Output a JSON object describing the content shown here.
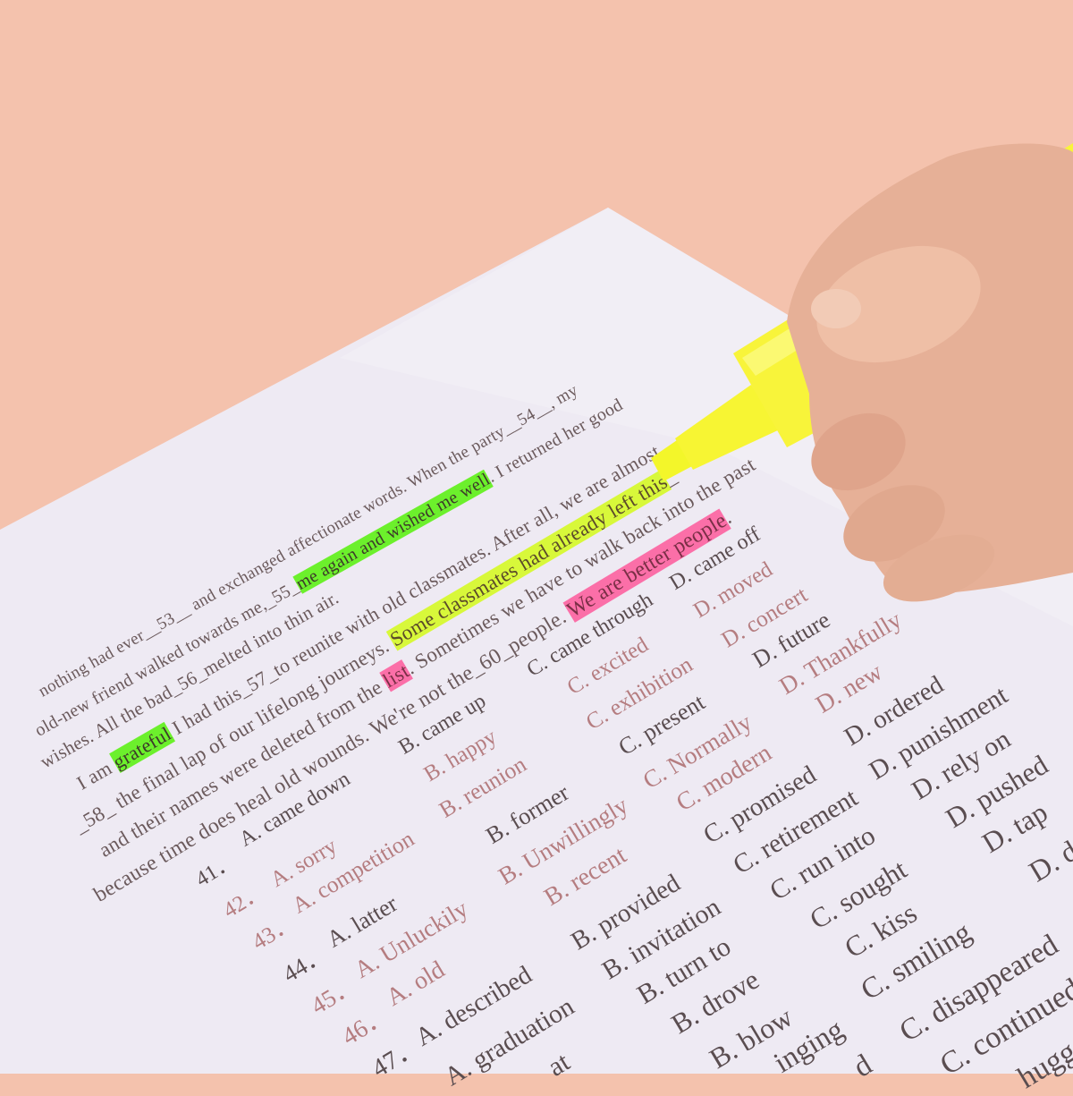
{
  "colors": {
    "background": "#f4c2ad",
    "paper": "#eeeaf3",
    "highlight_green": "#6cf02c",
    "highlight_yellow": "#d8f83a",
    "highlight_pink": "#fb6fa8",
    "highlighter_body": "#f7f533",
    "skin": "#e6b097"
  },
  "passage": [
    {
      "segments": [
        {
          "text": "nothing had ever__53__ and exchanged affectionate words. When the party__54__,      my",
          "hl": ""
        }
      ]
    },
    {
      "segments": [
        {
          "text": "old-new friend walked towards me,_55_",
          "hl": ""
        },
        {
          "text": "me again and wished me well",
          "hl": "green"
        },
        {
          "text": ". I returned her good",
          "hl": ""
        }
      ]
    },
    {
      "segments": [
        {
          "text": "wishes. All the bad_56_melted into thin air.",
          "hl": ""
        }
      ]
    },
    {
      "segments": [
        {
          "text": "I am ",
          "hl": ""
        },
        {
          "text": "grateful",
          "hl": "green"
        },
        {
          "text": " I had this_57_to reunite with old classmates. After all, we are almost",
          "hl": ""
        }
      ]
    },
    {
      "segments": [
        {
          "text": "_58_ the final lap of our lifelong journeys. ",
          "hl": ""
        },
        {
          "text": "Some classmates had already left this",
          "hl": "yellow"
        },
        {
          "text": "_",
          "hl": ""
        }
      ]
    },
    {
      "segments": [
        {
          "text": "and their names were deleted from the ",
          "hl": ""
        },
        {
          "text": "list",
          "hl": "pink"
        },
        {
          "text": ". Sometimes we have to walk back into the past",
          "hl": ""
        }
      ]
    },
    {
      "segments": [
        {
          "text": "because time does heal old wounds. We're not the_60_people. ",
          "hl": ""
        },
        {
          "text": "We are better people",
          "hl": "pink"
        },
        {
          "text": ".",
          "hl": ""
        }
      ]
    }
  ],
  "options": [
    {
      "num": "41．",
      "A": "A. came down",
      "B": "B. came up",
      "C": "C. came through",
      "D": "D. came off"
    },
    {
      "num": "42．",
      "A": "A. sorry",
      "B": "B. happy",
      "C": "C. excited",
      "D": "D. moved"
    },
    {
      "num": "43．",
      "A": "A. competition",
      "B": "B. reunion",
      "C": "C. exhibition",
      "D": "D. concert"
    },
    {
      "num": "44．",
      "A": "A. latter",
      "B": "B. former",
      "C": "C. present",
      "D": "D. future"
    },
    {
      "num": "45．",
      "A": "A. Unluckily",
      "B": "B. Unwillingly",
      "C": "C. Normally",
      "D": "D. Thankfully"
    },
    {
      "num": "46．",
      "A": "A. old",
      "B": "B. recent",
      "C": "C. modern",
      "D": "D. new"
    },
    {
      "num": "47．",
      "A": "A. described",
      "B": "B. provided",
      "C": "C. promised",
      "D": "D. ordered"
    },
    {
      "num": "",
      "A": "A. graduation",
      "B": "B. invitation",
      "C": "C. retirement",
      "D": "D. punishment"
    },
    {
      "num": "",
      "A": "at",
      "B": "B. turn to",
      "C": "C. run into",
      "D": "D. rely on"
    },
    {
      "num": "",
      "A": "",
      "B": "B. drove",
      "C": "C. sought",
      "D": "D. pushed"
    },
    {
      "num": "",
      "A": "",
      "B": "B. blow",
      "C": "C. kiss",
      "D": "D. tap"
    },
    {
      "num": "",
      "A": "",
      "B": "inging",
      "C": "C. smiling",
      "D": "D. da"
    },
    {
      "num": "",
      "A": "",
      "B": "d",
      "C": "C. disappeared",
      "D": ""
    },
    {
      "num": "",
      "A": "",
      "B": "",
      "C": "C. continued",
      "D": "hugged"
    }
  ]
}
